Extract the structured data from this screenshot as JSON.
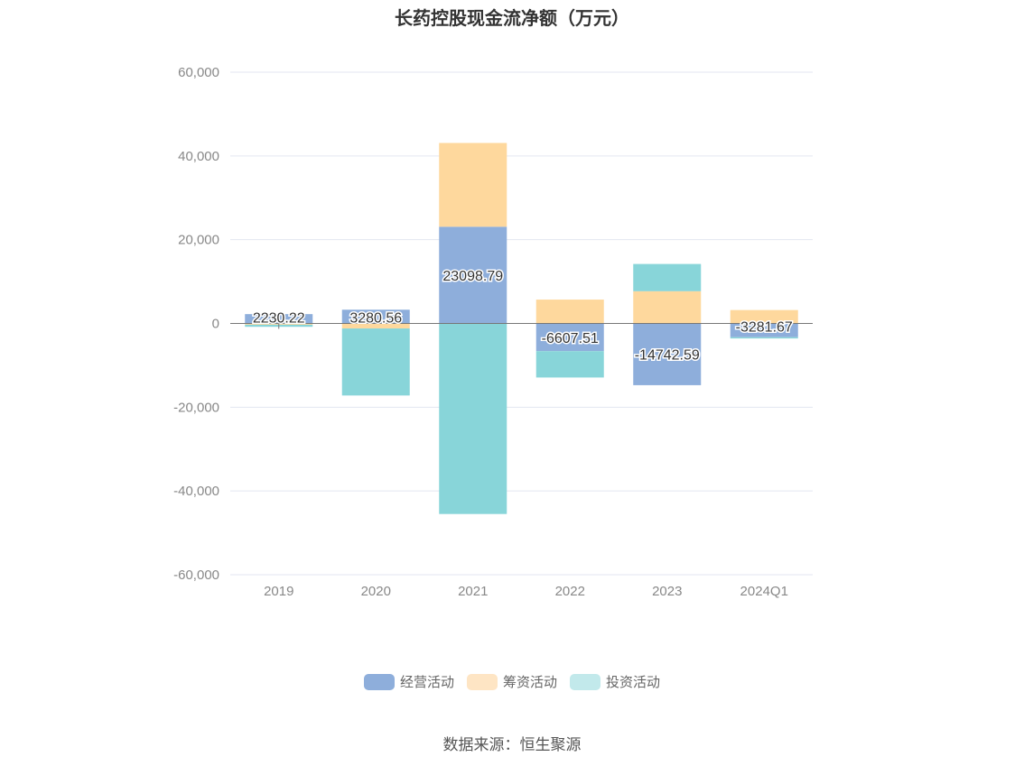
{
  "chart_data": {
    "type": "bar",
    "stacked": true,
    "title": "长药控股现金流净额（万元）",
    "categories": [
      "2019",
      "2020",
      "2021",
      "2022",
      "2023",
      "2024Q1"
    ],
    "ylim": [
      -60000,
      60000
    ],
    "y_ticks": [
      60000,
      40000,
      20000,
      0,
      -20000,
      -40000,
      -60000
    ],
    "y_tick_labels": [
      "60,000",
      "40,000",
      "20,000",
      "0",
      "-20,000",
      "-40,000",
      "-60,000"
    ],
    "grid": true,
    "legend_position": "bottom",
    "series": [
      {
        "name": "经营活动",
        "color": "#8eaedb",
        "values": [
          2230.22,
          3280.56,
          23098.79,
          -6607.51,
          -14742.59,
          -3281.67
        ],
        "labels": [
          "2230.22",
          "3280.56",
          "23098.79",
          "-6607.51",
          "-14742.59",
          "-3281.67"
        ]
      },
      {
        "name": "筹资活动",
        "color": "#fed89d",
        "values": [
          -300,
          -1200,
          20000,
          5700,
          7700,
          3200
        ]
      },
      {
        "name": "投资活动",
        "color": "#88d5d9",
        "values": [
          -500,
          -16000,
          -45500,
          -6300,
          6500,
          -300
        ]
      }
    ]
  },
  "source": "数据来源：恒生聚源"
}
